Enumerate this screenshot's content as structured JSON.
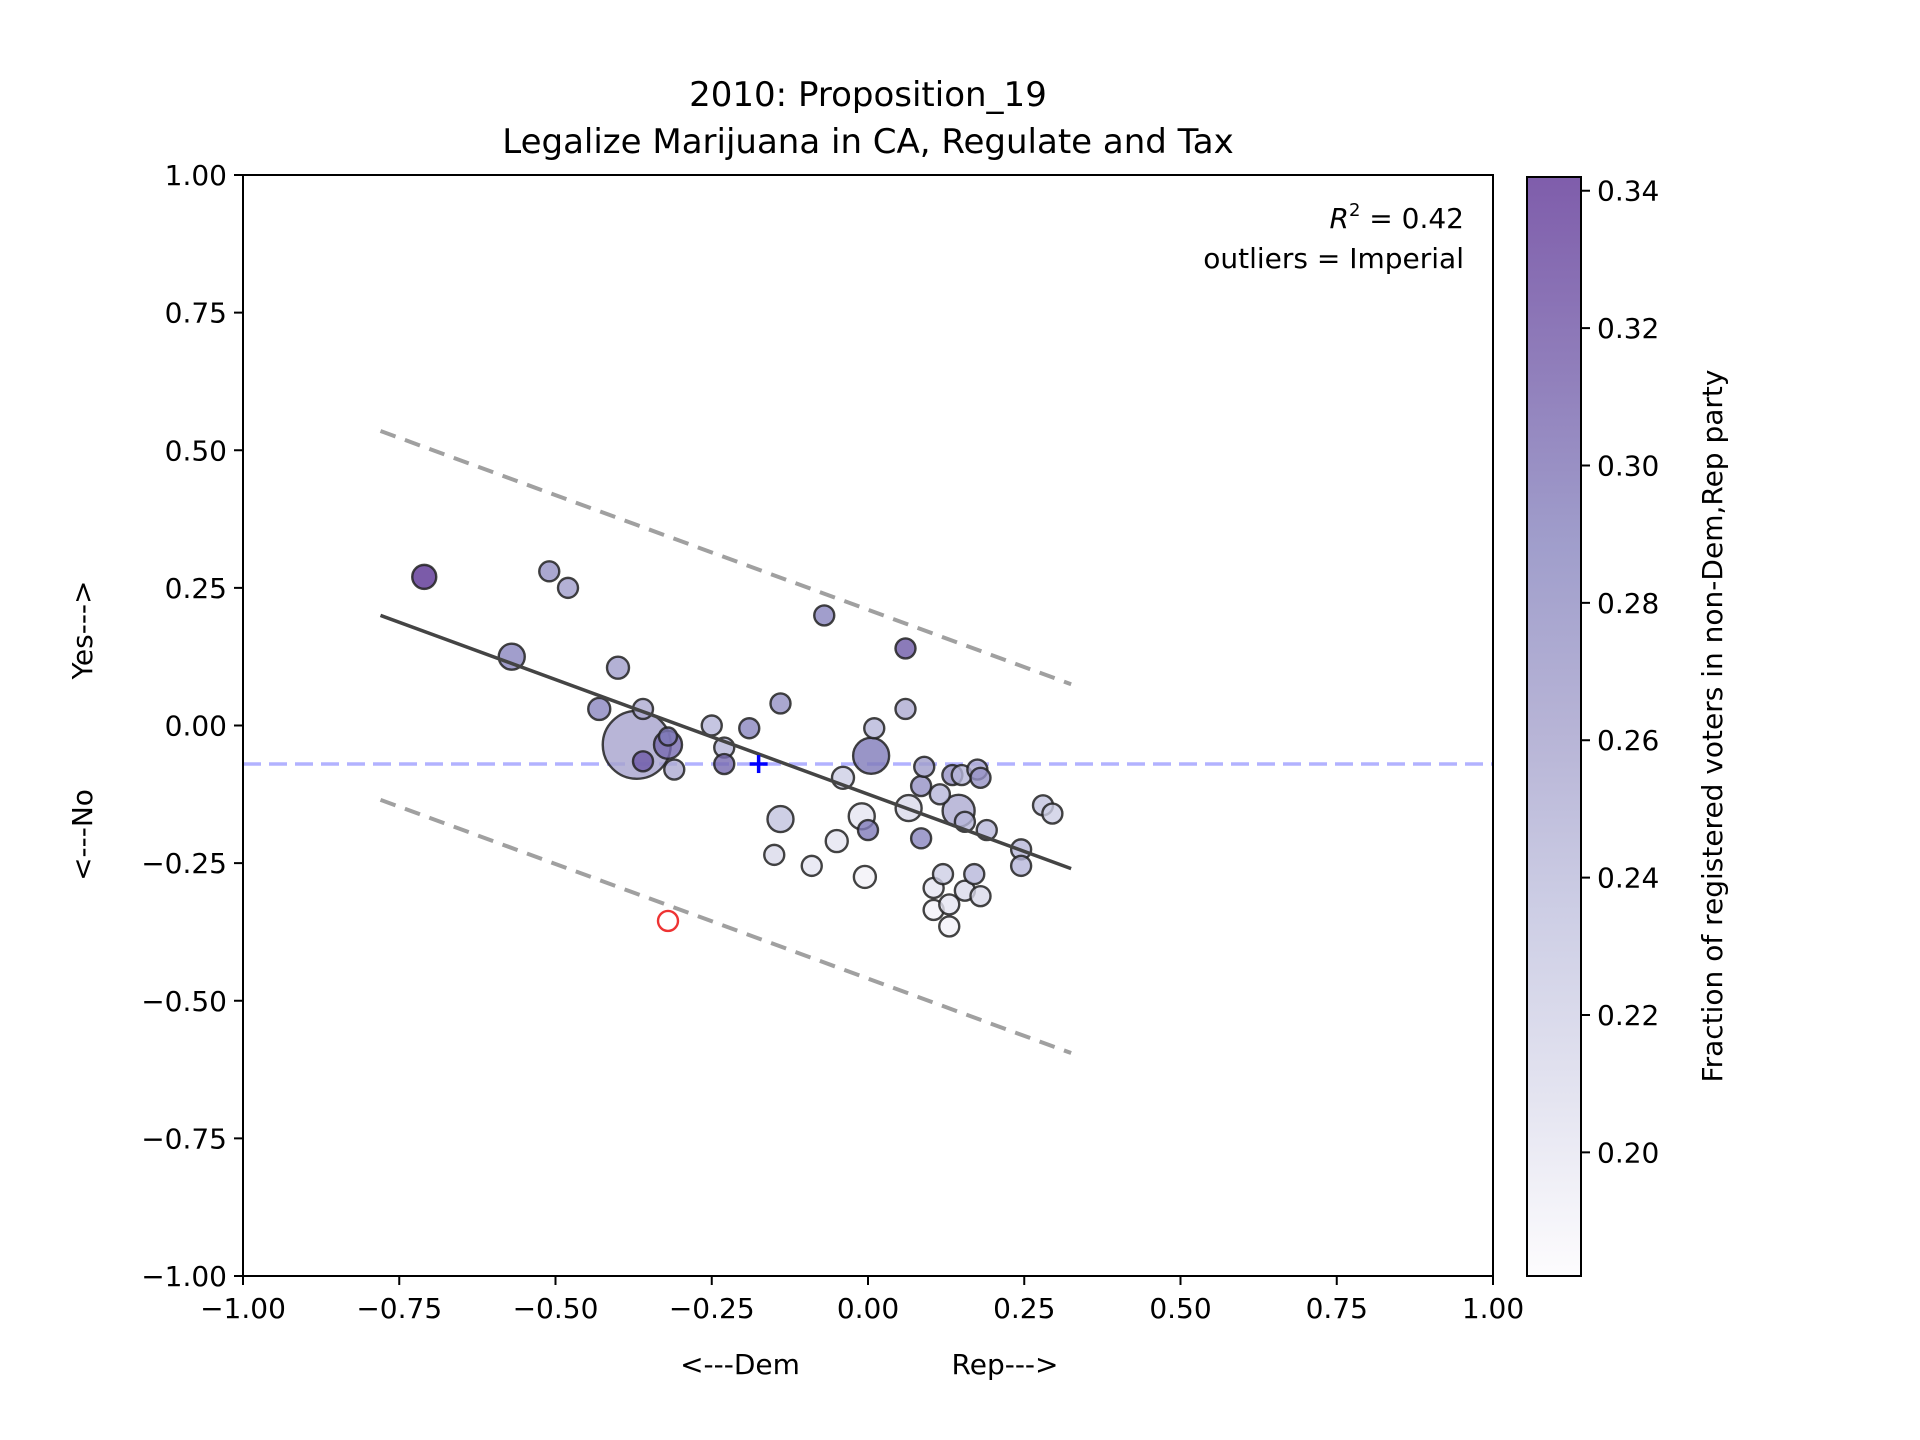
{
  "chart_data": {
    "type": "scatter",
    "title_line1": "2010: Proposition_19",
    "title_line2": "Legalize Marijuana in CA, Regulate and Tax",
    "xlabel_left": "<---Dem",
    "xlabel_right": "Rep--->",
    "ylabel_bottom": "<---No",
    "ylabel_top": "Yes--->",
    "xlim": [
      -1.0,
      1.0
    ],
    "ylim": [
      -1.0,
      1.0
    ],
    "xticks": [
      "−1.00",
      "−0.75",
      "−0.50",
      "−0.25",
      "0.00",
      "0.25",
      "0.50",
      "0.75",
      "1.00"
    ],
    "yticks": [
      "1.00",
      "0.75",
      "0.50",
      "0.25",
      "0.00",
      "−0.25",
      "−0.50",
      "−0.75",
      "−1.00"
    ],
    "annotation_r2_prefix": "R",
    "annotation_r2_sup": "2",
    "annotation_r2_value": " = 0.42",
    "annotation_outliers": "outliers = Imperial",
    "colorbar_label": "Fraction of registered voters in non-Dem,Rep party",
    "colorbar_range": [
      0.182,
      0.342
    ],
    "colorbar_ticks": [
      "0.20",
      "0.22",
      "0.24",
      "0.26",
      "0.28",
      "0.30",
      "0.32",
      "0.34"
    ],
    "colormap": [
      "#fcfbfd",
      "#dadaeb",
      "#bcbddc",
      "#9e9ac8",
      "#807dba",
      "#6a51a3",
      "#54278f"
    ],
    "regression": {
      "x0": -0.78,
      "y0": 0.2,
      "x1": 0.325,
      "y1": -0.26
    },
    "band_upper": {
      "x0": -0.78,
      "y0": 0.535,
      "x1": 0.325,
      "y1": 0.075
    },
    "band_lower": {
      "x0": -0.78,
      "y0": -0.135,
      "x1": 0.325,
      "y1": -0.595
    },
    "mean_line_y": -0.07,
    "mean_marker": {
      "x": -0.175,
      "y": -0.07
    },
    "outlier": {
      "x": -0.32,
      "y": -0.355
    },
    "line_color": "#444444",
    "band_color": "#a0a0a0",
    "mean_color": "#0000ff",
    "outlier_color": "#ee3333",
    "points": [
      {
        "x": -0.71,
        "y": 0.27,
        "s": 12,
        "c": 0.335
      },
      {
        "x": -0.51,
        "y": 0.28,
        "s": 10,
        "c": 0.27
      },
      {
        "x": -0.48,
        "y": 0.25,
        "s": 10,
        "c": 0.26
      },
      {
        "x": -0.57,
        "y": 0.125,
        "s": 13,
        "c": 0.28
      },
      {
        "x": -0.4,
        "y": 0.105,
        "s": 11,
        "c": 0.26
      },
      {
        "x": -0.43,
        "y": 0.03,
        "s": 11,
        "c": 0.28
      },
      {
        "x": -0.36,
        "y": 0.03,
        "s": 10,
        "c": 0.25
      },
      {
        "x": -0.37,
        "y": -0.035,
        "s": 34,
        "c": 0.255
      },
      {
        "x": -0.36,
        "y": -0.065,
        "s": 10,
        "c": 0.31
      },
      {
        "x": -0.32,
        "y": -0.035,
        "s": 14,
        "c": 0.3
      },
      {
        "x": -0.32,
        "y": -0.02,
        "s": 9,
        "c": 0.29
      },
      {
        "x": -0.31,
        "y": -0.08,
        "s": 10,
        "c": 0.25
      },
      {
        "x": -0.25,
        "y": 0.0,
        "s": 10,
        "c": 0.24
      },
      {
        "x": -0.23,
        "y": -0.04,
        "s": 10,
        "c": 0.24
      },
      {
        "x": -0.23,
        "y": -0.07,
        "s": 10,
        "c": 0.3
      },
      {
        "x": -0.19,
        "y": -0.005,
        "s": 10,
        "c": 0.28
      },
      {
        "x": -0.14,
        "y": 0.04,
        "s": 10,
        "c": 0.27
      },
      {
        "x": -0.07,
        "y": 0.2,
        "s": 10,
        "c": 0.28
      },
      {
        "x": 0.06,
        "y": 0.14,
        "s": 10,
        "c": 0.31
      },
      {
        "x": 0.005,
        "y": -0.055,
        "s": 18,
        "c": 0.29
      },
      {
        "x": 0.01,
        "y": -0.005,
        "s": 10,
        "c": 0.24
      },
      {
        "x": 0.06,
        "y": 0.03,
        "s": 10,
        "c": 0.25
      },
      {
        "x": -0.04,
        "y": -0.095,
        "s": 11,
        "c": 0.22
      },
      {
        "x": -0.14,
        "y": -0.17,
        "s": 13,
        "c": 0.23
      },
      {
        "x": -0.01,
        "y": -0.165,
        "s": 13,
        "c": 0.2
      },
      {
        "x": 0.0,
        "y": -0.19,
        "s": 10,
        "c": 0.29
      },
      {
        "x": -0.05,
        "y": -0.21,
        "s": 11,
        "c": 0.2
      },
      {
        "x": -0.09,
        "y": -0.255,
        "s": 10,
        "c": 0.2
      },
      {
        "x": -0.15,
        "y": -0.235,
        "s": 10,
        "c": 0.21
      },
      {
        "x": -0.005,
        "y": -0.275,
        "s": 11,
        "c": 0.19
      },
      {
        "x": 0.065,
        "y": -0.15,
        "s": 13,
        "c": 0.21
      },
      {
        "x": 0.085,
        "y": -0.11,
        "s": 10,
        "c": 0.27
      },
      {
        "x": 0.09,
        "y": -0.075,
        "s": 10,
        "c": 0.26
      },
      {
        "x": 0.085,
        "y": -0.205,
        "s": 10,
        "c": 0.28
      },
      {
        "x": 0.115,
        "y": -0.125,
        "s": 10,
        "c": 0.24
      },
      {
        "x": 0.135,
        "y": -0.09,
        "s": 10,
        "c": 0.27
      },
      {
        "x": 0.145,
        "y": -0.155,
        "s": 16,
        "c": 0.25
      },
      {
        "x": 0.15,
        "y": -0.09,
        "s": 10,
        "c": 0.24
      },
      {
        "x": 0.155,
        "y": -0.175,
        "s": 10,
        "c": 0.24
      },
      {
        "x": 0.175,
        "y": -0.08,
        "s": 10,
        "c": 0.25
      },
      {
        "x": 0.18,
        "y": -0.095,
        "s": 10,
        "c": 0.27
      },
      {
        "x": 0.19,
        "y": -0.19,
        "s": 10,
        "c": 0.24
      },
      {
        "x": 0.105,
        "y": -0.295,
        "s": 10,
        "c": 0.2
      },
      {
        "x": 0.12,
        "y": -0.27,
        "s": 10,
        "c": 0.22
      },
      {
        "x": 0.105,
        "y": -0.335,
        "s": 10,
        "c": 0.19
      },
      {
        "x": 0.13,
        "y": -0.325,
        "s": 10,
        "c": 0.2
      },
      {
        "x": 0.13,
        "y": -0.365,
        "s": 10,
        "c": 0.19
      },
      {
        "x": 0.155,
        "y": -0.3,
        "s": 10,
        "c": 0.21
      },
      {
        "x": 0.17,
        "y": -0.27,
        "s": 10,
        "c": 0.24
      },
      {
        "x": 0.18,
        "y": -0.31,
        "s": 10,
        "c": 0.21
      },
      {
        "x": 0.245,
        "y": -0.225,
        "s": 10,
        "c": 0.24
      },
      {
        "x": 0.245,
        "y": -0.255,
        "s": 10,
        "c": 0.24
      },
      {
        "x": 0.28,
        "y": -0.145,
        "s": 10,
        "c": 0.23
      },
      {
        "x": 0.295,
        "y": -0.16,
        "s": 10,
        "c": 0.22
      }
    ]
  }
}
